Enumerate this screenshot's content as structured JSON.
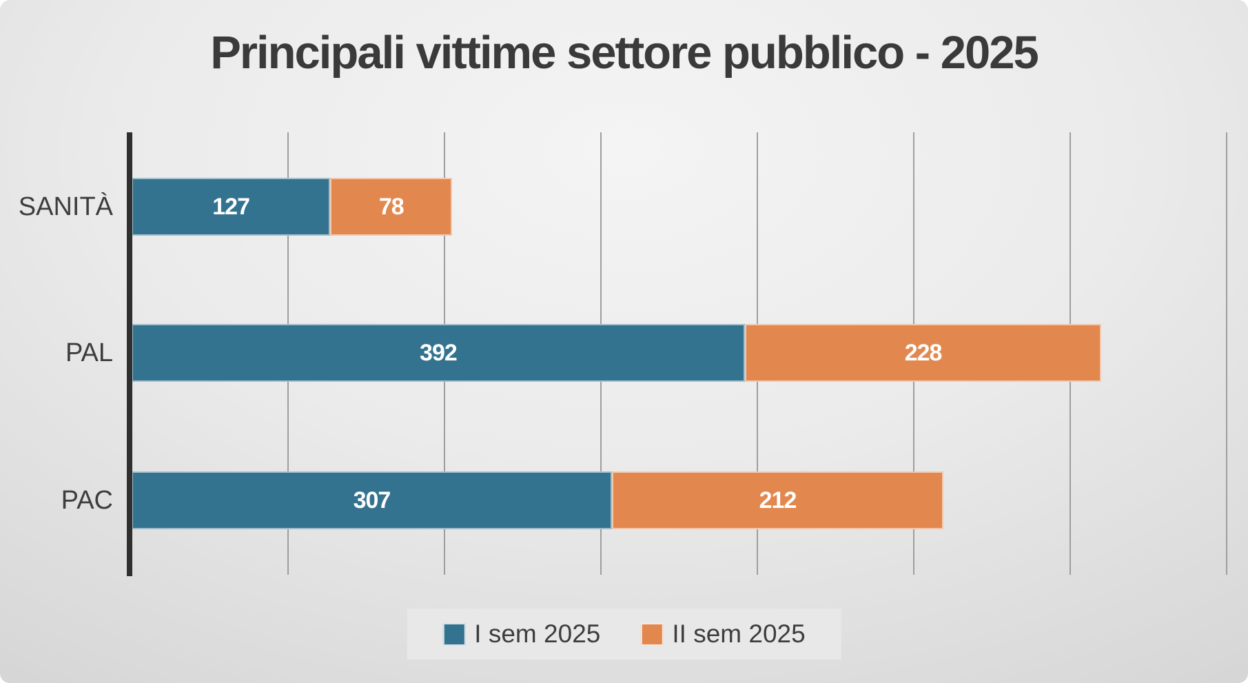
{
  "chart_data": {
    "type": "bar",
    "orientation": "horizontal",
    "stacked": true,
    "title": "Principali vittime settore pubblico - 2025",
    "categories": [
      "SANITÀ",
      "PAL",
      "PAC"
    ],
    "series": [
      {
        "name": "I sem 2025",
        "color": "#347390",
        "values": [
          127,
          392,
          307
        ]
      },
      {
        "name": "II sem 2025",
        "color": "#E2884F",
        "values": [
          78,
          228,
          212
        ]
      }
    ],
    "xlim": [
      0,
      700
    ],
    "gridline_interval": 100,
    "grid": true,
    "axis_tick_labels_visible": false,
    "legend_position": "bottom",
    "value_labels": "inside"
  },
  "legend": {
    "items": [
      {
        "label": "I sem 2025",
        "color": "#347390"
      },
      {
        "label": "II sem 2025",
        "color": "#E2884F"
      }
    ]
  },
  "colors": {
    "background_light": "#f4f4f4",
    "background_dark": "#c3c3c3",
    "title_text": "#3a3a3a",
    "category_text": "#3d3d3d",
    "axis_line": "#2f2f2f",
    "gridline": "#9e9e9e",
    "value_text": "#ffffff",
    "legend_background": "#e8e8e8"
  }
}
